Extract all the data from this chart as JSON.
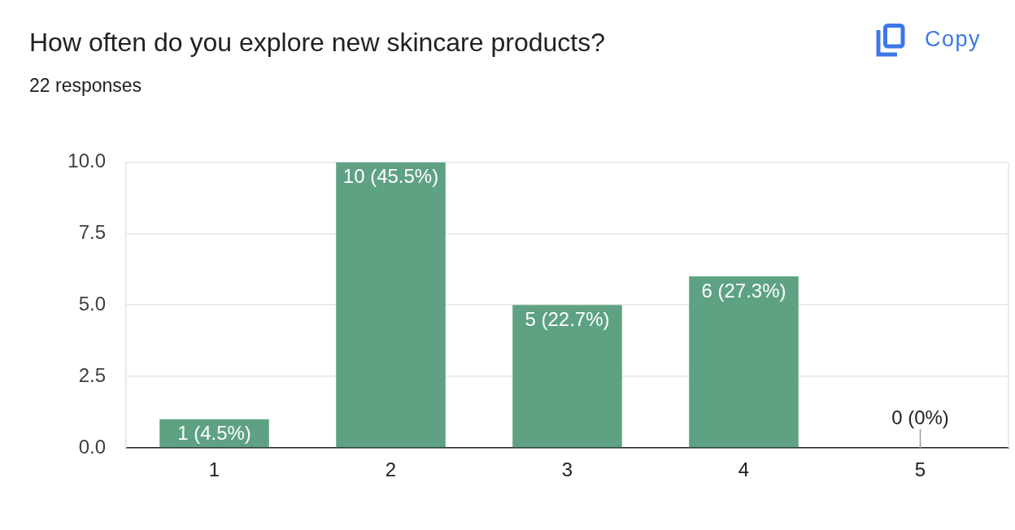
{
  "chart_data": {
    "type": "bar",
    "title": "How often do you explore new skincare products?",
    "subtitle": "22 responses",
    "annotations": [
      "Copy"
    ],
    "categories": [
      "1",
      "2",
      "3",
      "4",
      "5"
    ],
    "values": [
      1,
      10,
      5,
      6,
      0
    ],
    "value_labels": [
      "1 (4.5%)",
      "10 (45.5%)",
      "5 (22.7%)",
      "6 (27.3%)",
      "0 (0%)"
    ],
    "color": "#5ea283",
    "ylim": [
      0,
      10
    ],
    "yticks": [
      {
        "value": 0,
        "label": "0.0"
      },
      {
        "value": 2.5,
        "label": "2.5"
      },
      {
        "value": 5,
        "label": "5.0"
      },
      {
        "value": 7.5,
        "label": "7.5"
      },
      {
        "value": 10,
        "label": "10.0"
      }
    ],
    "grid": "y"
  }
}
